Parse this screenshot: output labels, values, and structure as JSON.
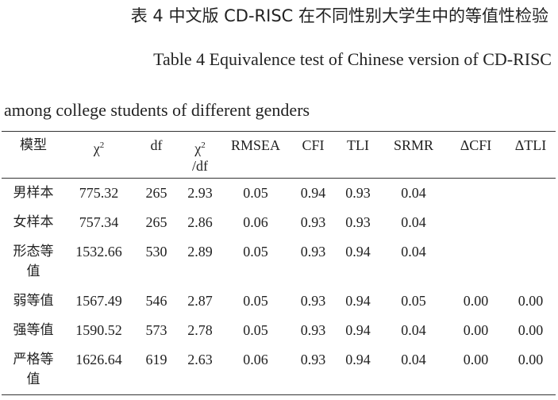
{
  "title_cn": "表 4 中文版 CD-RISC 在不同性别大学生中的等值性检验",
  "title_en_line1": "Table 4 Equivalence test of Chinese version of CD-RISC",
  "title_en_line2": "among college students of different genders",
  "table": {
    "header": [
      {
        "text": "模型"
      },
      {
        "text": "χ",
        "sup": "2"
      },
      {
        "text": "df"
      },
      {
        "text": "χ",
        "sup": "2",
        "after": "/df"
      },
      {
        "text": "RMSEA"
      },
      {
        "text": "CFI"
      },
      {
        "text": "TLI"
      },
      {
        "text": "SRMR"
      },
      {
        "text": "ΔCFI"
      },
      {
        "text": "ΔTLI"
      }
    ],
    "rows": [
      [
        "男样本",
        "775.32",
        "265",
        "2.93",
        "0.05",
        "0.94",
        "0.93",
        "0.04"
      ],
      [
        "女样本",
        "757.34",
        "265",
        "2.86",
        "0.06",
        "0.93",
        "0.93",
        "0.04"
      ],
      [
        "形态等值",
        "1532.66",
        "530",
        "2.89",
        "0.05",
        "0.93",
        "0.94",
        "0.04"
      ],
      [
        "弱等值",
        "1567.49",
        "546",
        "2.87",
        "0.05",
        "0.93",
        "0.94",
        "0.05",
        "0.00",
        "0.00"
      ],
      [
        "强等值",
        "1590.52",
        "573",
        "2.78",
        "0.05",
        "0.93",
        "0.94",
        "0.04",
        "0.00",
        "0.00"
      ],
      [
        "严格等值",
        "1626.64",
        "619",
        "2.63",
        "0.06",
        "0.93",
        "0.94",
        "0.04",
        "0.00",
        "0.00"
      ]
    ]
  }
}
